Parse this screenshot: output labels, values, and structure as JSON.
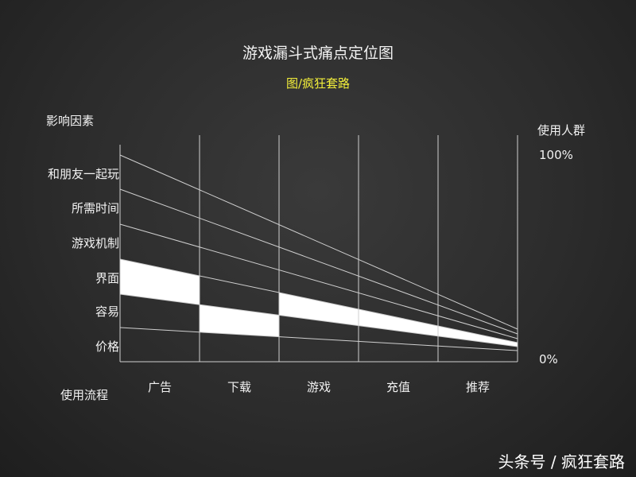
{
  "title": "游戏漏斗式痛点定位图",
  "subtitle": "图/疯狂套路",
  "left_axis": {
    "title": "影响因素",
    "factors": [
      "和朋友一起玩",
      "所需时间",
      "游戏机制",
      "界面",
      "容易",
      "价格"
    ]
  },
  "right_axis": {
    "title": "使用人群",
    "top_label": "100%",
    "bottom_label": "0%"
  },
  "x_axis": {
    "title": "使用流程",
    "stages": [
      "广告",
      "下载",
      "游戏",
      "充值",
      "推荐"
    ]
  },
  "highlighted_pain_points": [
    {
      "stage": "广告",
      "factor": "界面"
    },
    {
      "stage": "下载",
      "factor": "容易"
    },
    {
      "stage": "游戏",
      "factor": "界面"
    },
    {
      "stage": "充值",
      "factor": "界面"
    },
    {
      "stage": "推荐",
      "factor": "界面"
    }
  ],
  "watermark": "头条号 / 疯狂套路",
  "colors": {
    "background": "#2b2b2b",
    "line": "#cfcfcf",
    "highlight": "#ffffff",
    "subtitle": "#f3ef3a"
  }
}
